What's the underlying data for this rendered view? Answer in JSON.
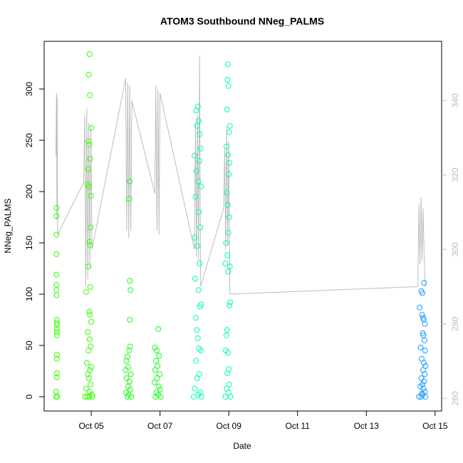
{
  "chart_data": {
    "type": "scatter",
    "title": "ATOM3 Southbound NNeg_PALMS",
    "x_label": "Date",
    "y_label": "NNeg_PALMS",
    "xlim": [
      3.63,
      15.19
    ],
    "xticks": [
      {
        "value": 5,
        "label": "Oct 05"
      },
      {
        "value": 7,
        "label": "Oct 07"
      },
      {
        "value": 9,
        "label": "Oct 09"
      },
      {
        "value": 11,
        "label": "Oct 11"
      },
      {
        "value": 13,
        "label": "Oct 13"
      },
      {
        "value": 15,
        "label": "Oct 15"
      }
    ],
    "ylim": [
      -13.9,
      346.5
    ],
    "yticks": [
      0,
      50,
      100,
      150,
      200,
      250,
      300
    ],
    "y2lim": [
      256.6,
      355.9
    ],
    "y2ticks": [
      260,
      280,
      300,
      320,
      340
    ],
    "series": [
      {
        "type": "scatter",
        "color": "#33ff00",
        "x": [
          3.99,
          3.99,
          3.99,
          3.99,
          3.99,
          3.99,
          3.99,
          3.99,
          4.0,
          4.0,
          4.0,
          4.0,
          4.0,
          4.0,
          4.0,
          4.0,
          4.0,
          4.0,
          3.98,
          3.98,
          4.01,
          4.95,
          4.93,
          4.96,
          5.0,
          4.92,
          4.94,
          4.97,
          4.91,
          4.89,
          4.93,
          4.99,
          4.98,
          4.95,
          4.96,
          4.92,
          4.97,
          4.85,
          4.94,
          4.96,
          5.0,
          4.9,
          4.95,
          4.98,
          4.92,
          4.87,
          5.0,
          4.96,
          4.9,
          4.93,
          4.98,
          4.85,
          4.95,
          5.02,
          4.82,
          4.88,
          4.95,
          5.04
        ],
        "values": [
          184,
          176,
          158,
          139,
          119,
          109,
          104,
          99,
          75,
          72,
          70,
          66,
          63,
          60,
          41,
          37,
          23,
          19,
          5,
          0,
          0,
          334,
          314,
          294,
          262,
          249,
          246,
          232,
          222,
          207,
          205,
          196,
          165,
          151,
          148,
          127,
          107,
          102,
          83,
          80,
          73,
          63,
          56,
          49,
          45,
          33,
          29,
          26,
          22,
          18,
          12,
          8,
          5,
          2,
          0,
          0,
          0,
          0
        ]
      },
      {
        "type": "scatter",
        "color": "#19ff19",
        "x": [
          6.12,
          6.1,
          6.12,
          6.14,
          6.12,
          6.13,
          6.1,
          6.05,
          6.02,
          6.08,
          6.0,
          6.15,
          6.03,
          6.11,
          6.07,
          6.13,
          6.01,
          6.09,
          6.05,
          6.16,
          6.95,
          6.85,
          6.9,
          6.97,
          6.88,
          6.93,
          6.86,
          6.99,
          6.91,
          6.84,
          6.96,
          7.0,
          6.89,
          6.94,
          6.87,
          7.02
        ],
        "values": [
          210,
          193,
          113,
          104,
          75,
          49,
          45,
          39,
          35,
          29,
          26,
          22,
          18,
          15,
          10,
          7,
          4,
          2,
          0,
          0,
          66,
          48,
          45,
          40,
          35,
          30,
          26,
          22,
          18,
          14,
          10,
          7,
          4,
          2,
          0,
          0
        ]
      },
      {
        "type": "scatter",
        "color": "#00ffb0",
        "x": [
          8.1,
          8.05,
          8.12,
          8.08,
          8.15,
          8.18,
          8.0,
          8.14,
          8.06,
          8.11,
          8.19,
          8.03,
          8.13,
          8.17,
          8.01,
          8.09,
          8.15,
          8.02,
          8.12,
          8.2,
          8.16,
          8.04,
          8.07,
          8.1,
          8.13,
          8.19,
          8.05,
          8.14,
          8.08,
          8.01,
          8.17,
          8.11,
          7.98,
          8.2,
          8.97,
          8.96,
          8.99,
          8.95,
          9.03,
          9.01,
          8.93,
          8.98,
          9.02,
          9.0,
          8.94,
          8.97,
          9.01,
          8.99,
          8.92,
          8.96,
          8.9,
          9.03,
          8.98,
          9.04,
          9.02,
          8.95,
          8.93,
          8.91,
          8.98,
          9.0,
          8.96,
          9.01,
          8.94,
          8.99,
          8.9,
          9.05
        ],
        "values": [
          283,
          279,
          269,
          264,
          256,
          242,
          235,
          230,
          220,
          210,
          205,
          195,
          180,
          165,
          155,
          147,
          130,
          115,
          104,
          90,
          88,
          77,
          65,
          57,
          47,
          45,
          35,
          22,
          18,
          8,
          4,
          2,
          0,
          0,
          324,
          309,
          303,
          280,
          264,
          258,
          244,
          236,
          228,
          217,
          199,
          187,
          175,
          160,
          150,
          138,
          130,
          127,
          122,
          92,
          89,
          65,
          60,
          45,
          43,
          27,
          23,
          12,
          8,
          4,
          0,
          0
        ]
      },
      {
        "type": "scatter",
        "color": "#1a9cff",
        "x": [
          14.68,
          14.6,
          14.63,
          14.55,
          14.62,
          14.65,
          14.67,
          14.7,
          14.64,
          14.66,
          14.69,
          14.58,
          14.71,
          14.61,
          14.67,
          14.72,
          14.65,
          14.7,
          14.6,
          14.68,
          14.63,
          14.57,
          14.66,
          14.7,
          14.62,
          14.64,
          14.53,
          14.6,
          14.72
        ],
        "values": [
          111,
          103,
          101,
          87,
          80,
          77,
          75,
          71,
          62,
          60,
          55,
          48,
          45,
          37,
          33,
          30,
          26,
          22,
          18,
          15,
          12,
          10,
          8,
          5,
          3,
          2,
          0,
          0,
          0
        ]
      },
      {
        "type": "line",
        "axis": "y2",
        "color": "#bebebe",
        "x": [
          3.97,
          3.99,
          4.0,
          4.01,
          4.02,
          4.78,
          4.81,
          4.84,
          4.87,
          4.9,
          4.93,
          4.96,
          4.99,
          5.02,
          6.0,
          6.03,
          6.06,
          6.09,
          6.12,
          6.15,
          6.18,
          6.85,
          6.88,
          6.91,
          6.94,
          6.97,
          7.0,
          8.0,
          8.03,
          8.06,
          8.09,
          8.12,
          8.15,
          8.18,
          8.85,
          8.88,
          8.91,
          8.94,
          8.97,
          9.0,
          9.03,
          14.5,
          14.53,
          14.56,
          14.59,
          14.62,
          14.65,
          14.68,
          14.71
        ],
        "values": [
          325,
          342,
          308,
          341,
          304,
          318,
          336,
          290,
          338,
          292,
          334,
          295,
          333,
          300,
          346,
          305,
          345,
          303,
          344,
          305,
          340,
          315,
          344,
          305,
          343,
          304,
          342,
          300,
          334,
          298,
          336,
          297,
          352,
          290,
          311,
          327,
          300,
          333,
          301,
          329,
          288,
          290,
          312,
          296,
          314,
          297,
          311,
          299,
          290
        ]
      }
    ]
  }
}
